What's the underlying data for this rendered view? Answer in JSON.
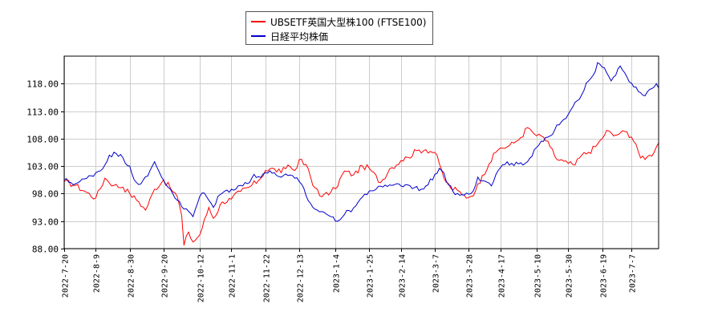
{
  "chart_data": {
    "type": "line",
    "title": "",
    "xlabel": "",
    "ylabel": "",
    "ylim": [
      88,
      123
    ],
    "grid": true,
    "legend_placement": "top-center",
    "y_ticks": [
      "88.00",
      "93.00",
      "98.00",
      "103.00",
      "108.00",
      "113.00",
      "118.00"
    ],
    "y_tick_values": [
      88,
      93,
      98,
      103,
      108,
      113,
      118
    ],
    "x_ticks": [
      "2022-7-20",
      "2022-8-9",
      "2022-8-30",
      "2022-9-20",
      "2022-10-12",
      "2022-11-1",
      "2022-11-22",
      "2022-12-13",
      "2023-1-4",
      "2023-1-25",
      "2023-2-14",
      "2023-3-7",
      "2023-3-28",
      "2023-4-17",
      "2023-5-10",
      "2023-5-30",
      "2023-6-19",
      "2023-7-7"
    ],
    "x_tick_index": [
      0,
      14,
      29,
      44,
      60,
      74,
      89,
      104,
      120,
      135,
      149,
      164,
      179,
      193,
      209,
      223,
      238,
      251
    ],
    "n_points": 264,
    "series": [
      {
        "name": "UBSETF英国大型株100 (FTSE100)",
        "color": "#ff0000",
        "anchors": [
          [
            0,
            100.2
          ],
          [
            5,
            99.5
          ],
          [
            10,
            98.2
          ],
          [
            14,
            97.2
          ],
          [
            18,
            100.8
          ],
          [
            22,
            99.5
          ],
          [
            26,
            99.2
          ],
          [
            29,
            98.0
          ],
          [
            33,
            96.5
          ],
          [
            36,
            95.0
          ],
          [
            40,
            98.8
          ],
          [
            44,
            100.5
          ],
          [
            47,
            99.0
          ],
          [
            50,
            97.5
          ],
          [
            52,
            94.0
          ],
          [
            53,
            88.6
          ],
          [
            55,
            91.0
          ],
          [
            57,
            89.2
          ],
          [
            60,
            90.5
          ],
          [
            64,
            95.5
          ],
          [
            66,
            93.5
          ],
          [
            70,
            96.5
          ],
          [
            74,
            97.0
          ],
          [
            78,
            98.4
          ],
          [
            82,
            99.2
          ],
          [
            86,
            100.4
          ],
          [
            89,
            102.2
          ],
          [
            93,
            102.5
          ],
          [
            96,
            101.8
          ],
          [
            99,
            103.2
          ],
          [
            102,
            102.2
          ],
          [
            104,
            104.2
          ],
          [
            108,
            102.5
          ],
          [
            110,
            99.5
          ],
          [
            112,
            98.8
          ],
          [
            114,
            97.4
          ],
          [
            118,
            98.3
          ],
          [
            120,
            98.9
          ],
          [
            124,
            102.1
          ],
          [
            128,
            101.4
          ],
          [
            132,
            103.0
          ],
          [
            135,
            102.6
          ],
          [
            140,
            100.0
          ],
          [
            144,
            102.5
          ],
          [
            149,
            104.0
          ],
          [
            152,
            104.6
          ],
          [
            156,
            105.8
          ],
          [
            160,
            106.0
          ],
          [
            164,
            105.5
          ],
          [
            166,
            103.4
          ],
          [
            168,
            100.8
          ],
          [
            171,
            99.0
          ],
          [
            174,
            98.6
          ],
          [
            176,
            97.8
          ],
          [
            179,
            97.3
          ],
          [
            182,
            98.5
          ],
          [
            185,
            101.3
          ],
          [
            188,
            103.4
          ],
          [
            191,
            105.5
          ],
          [
            193,
            106.3
          ],
          [
            196,
            106.5
          ],
          [
            199,
            107.2
          ],
          [
            202,
            108.2
          ],
          [
            205,
            110.0
          ],
          [
            207,
            109.3
          ],
          [
            209,
            108.5
          ],
          [
            212,
            108.3
          ],
          [
            215,
            106.5
          ],
          [
            218,
            104.2
          ],
          [
            221,
            103.9
          ],
          [
            223,
            103.5
          ],
          [
            226,
            103.2
          ],
          [
            229,
            105.0
          ],
          [
            232,
            105.5
          ],
          [
            235,
            106.5
          ],
          [
            238,
            108.0
          ],
          [
            240,
            109.5
          ],
          [
            243,
            108.5
          ],
          [
            246,
            109.0
          ],
          [
            249,
            109.2
          ],
          [
            251,
            108.3
          ],
          [
            253,
            107.0
          ],
          [
            255,
            104.5
          ],
          [
            257,
            104.2
          ],
          [
            259,
            105.0
          ],
          [
            261,
            105.5
          ],
          [
            263,
            107.2
          ]
        ],
        "noise": 0.55
      },
      {
        "name": "日経平均株価",
        "color": "#0000cc",
        "anchors": [
          [
            0,
            100.5
          ],
          [
            5,
            99.8
          ],
          [
            10,
            100.8
          ],
          [
            14,
            101.8
          ],
          [
            17,
            102.5
          ],
          [
            20,
            105.0
          ],
          [
            23,
            105.3
          ],
          [
            26,
            104.5
          ],
          [
            29,
            103.0
          ],
          [
            31,
            100.5
          ],
          [
            34,
            99.8
          ],
          [
            37,
            101.2
          ],
          [
            40,
            103.8
          ],
          [
            42,
            102.0
          ],
          [
            44,
            100.4
          ],
          [
            47,
            98.8
          ],
          [
            50,
            96.8
          ],
          [
            53,
            95.2
          ],
          [
            55,
            94.8
          ],
          [
            57,
            93.8
          ],
          [
            60,
            97.5
          ],
          [
            62,
            98.1
          ],
          [
            64,
            96.8
          ],
          [
            66,
            95.5
          ],
          [
            68,
            97.5
          ],
          [
            70,
            98.1
          ],
          [
            74,
            98.8
          ],
          [
            78,
            99.5
          ],
          [
            82,
            100.0
          ],
          [
            84,
            101.5
          ],
          [
            86,
            101.1
          ],
          [
            89,
            101.8
          ],
          [
            93,
            101.8
          ],
          [
            96,
            101.0
          ],
          [
            99,
            101.3
          ],
          [
            102,
            100.8
          ],
          [
            104,
            100.2
          ],
          [
            106,
            99.0
          ],
          [
            108,
            96.7
          ],
          [
            110,
            95.5
          ],
          [
            112,
            95.0
          ],
          [
            115,
            94.6
          ],
          [
            118,
            93.8
          ],
          [
            120,
            93.0
          ],
          [
            124,
            94.2
          ],
          [
            128,
            95.4
          ],
          [
            132,
            97.4
          ],
          [
            135,
            98.5
          ],
          [
            138,
            98.8
          ],
          [
            141,
            99.2
          ],
          [
            144,
            99.6
          ],
          [
            147,
            99.8
          ],
          [
            149,
            99.4
          ],
          [
            152,
            99.6
          ],
          [
            155,
            99.1
          ],
          [
            158,
            98.8
          ],
          [
            161,
            99.6
          ],
          [
            164,
            101.5
          ],
          [
            166,
            102.6
          ],
          [
            168,
            101.8
          ],
          [
            170,
            99.6
          ],
          [
            172,
            98.4
          ],
          [
            175,
            97.7
          ],
          [
            178,
            98.1
          ],
          [
            181,
            98.5
          ],
          [
            183,
            101.0
          ],
          [
            186,
            100.3
          ],
          [
            189,
            99.4
          ],
          [
            192,
            102.2
          ],
          [
            195,
            103.3
          ],
          [
            198,
            103.5
          ],
          [
            201,
            103.4
          ],
          [
            203,
            103.2
          ],
          [
            205,
            103.8
          ],
          [
            207,
            104.8
          ],
          [
            209,
            106.4
          ],
          [
            212,
            107.5
          ],
          [
            215,
            108.5
          ],
          [
            218,
            110.5
          ],
          [
            221,
            111.5
          ],
          [
            223,
            112.4
          ],
          [
            226,
            114.6
          ],
          [
            229,
            116.0
          ],
          [
            232,
            118.5
          ],
          [
            234,
            119.5
          ],
          [
            236,
            121.8
          ],
          [
            238,
            121.0
          ],
          [
            240,
            120.0
          ],
          [
            242,
            118.5
          ],
          [
            244,
            119.5
          ],
          [
            246,
            121.2
          ],
          [
            248,
            120.0
          ],
          [
            250,
            118.3
          ],
          [
            252,
            117.4
          ],
          [
            254,
            116.6
          ],
          [
            256,
            115.9
          ],
          [
            258,
            116.5
          ],
          [
            260,
            117.1
          ],
          [
            262,
            118.0
          ],
          [
            263,
            117.2
          ]
        ],
        "noise": 0.45
      }
    ]
  }
}
